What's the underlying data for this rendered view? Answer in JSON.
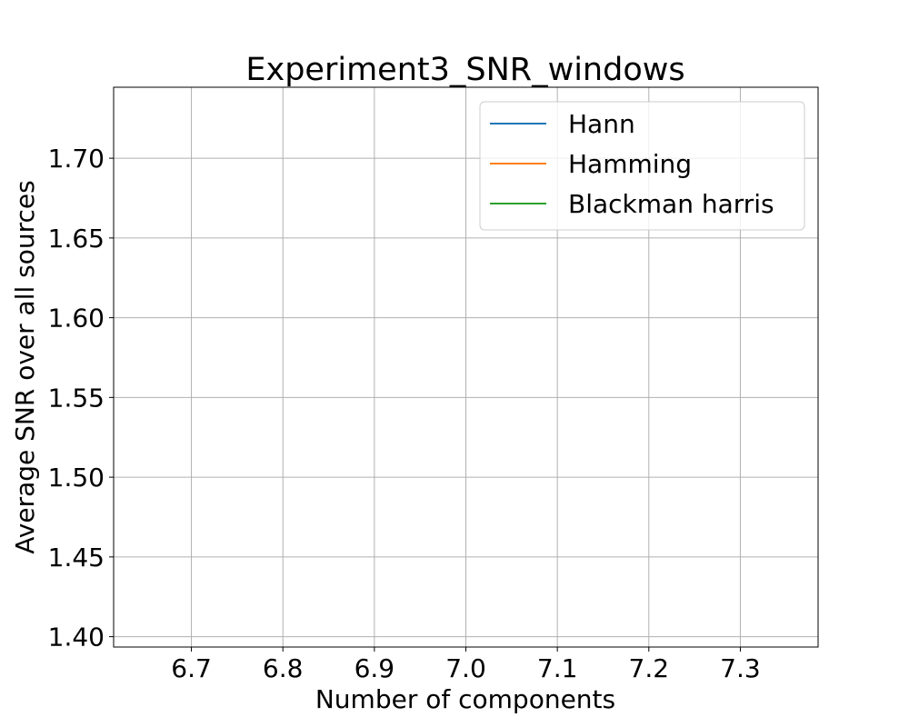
{
  "chart_data": {
    "type": "line",
    "title": "Experiment3_SNR_windows",
    "xlabel": "Number of components",
    "ylabel": "Average SNR over all sources",
    "xlim": [
      6.615,
      7.385
    ],
    "ylim": [
      1.3935,
      1.7445
    ],
    "xticks": [
      6.7,
      6.8,
      6.9,
      7.0,
      7.1,
      7.2,
      7.3
    ],
    "xtick_labels": [
      "6.7",
      "6.8",
      "6.9",
      "7.0",
      "7.1",
      "7.2",
      "7.3"
    ],
    "yticks": [
      1.4,
      1.45,
      1.5,
      1.55,
      1.6,
      1.65,
      1.7
    ],
    "ytick_labels": [
      "1.40",
      "1.45",
      "1.50",
      "1.55",
      "1.60",
      "1.65",
      "1.70"
    ],
    "grid": true,
    "legend_position": "top-right",
    "series": [
      {
        "name": "Hann",
        "color": "#1f77b4",
        "x": [],
        "y": []
      },
      {
        "name": "Hamming",
        "color": "#ff7f0e",
        "x": [],
        "y": []
      },
      {
        "name": "Blackman harris",
        "color": "#2ca02c",
        "x": [],
        "y": []
      }
    ]
  }
}
